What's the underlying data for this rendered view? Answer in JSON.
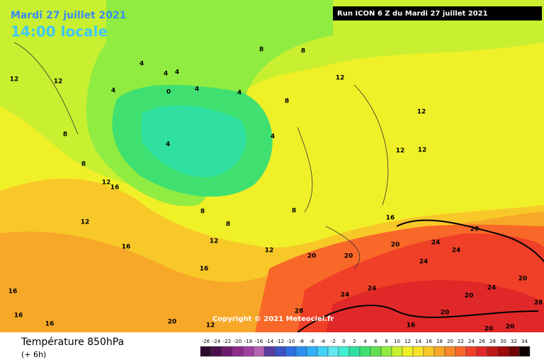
{
  "header": {
    "date": "Mardi 27 juillet 2021",
    "time": "14:00 locale",
    "run_info": "Run ICON 6 Z du Mardi 27 juillet 2021"
  },
  "copyright": "Copyright © 2021 Meteociel.fr",
  "legend": {
    "title": "Température 850hPa",
    "subtitle": "(+ 6h)",
    "ticks": [
      -26,
      -24,
      -22,
      -20,
      -18,
      -16,
      -14,
      -12,
      -10,
      -8,
      -6,
      -4,
      -2,
      0,
      2,
      4,
      6,
      8,
      10,
      12,
      14,
      16,
      18,
      20,
      22,
      24,
      26,
      28,
      30,
      32,
      34
    ],
    "colors": [
      "#2d0a2d",
      "#4b0f4b",
      "#6e1a6e",
      "#8c2a8c",
      "#a040a0",
      "#b464b4",
      "#5a3ca0",
      "#3c50c8",
      "#2e70e0",
      "#2c90f0",
      "#30b0f8",
      "#40d0f8",
      "#60e8f0",
      "#40f0d0",
      "#30e0a0",
      "#40e070",
      "#60e050",
      "#90ec40",
      "#c8f030",
      "#f0f028",
      "#f8e028",
      "#f8c828",
      "#f8a828",
      "#f88828",
      "#f86828",
      "#f04028",
      "#e02828",
      "#c01818",
      "#a00a0a",
      "#700404",
      "#100000"
    ]
  },
  "contour_labels": [
    12,
    12,
    4,
    4,
    4,
    4,
    0,
    4,
    4,
    8,
    8,
    8,
    12,
    12,
    12,
    12,
    4,
    4,
    8,
    8,
    12,
    16,
    12,
    12,
    8,
    8,
    8,
    12,
    16,
    16,
    16,
    16,
    16,
    20,
    20,
    20,
    24,
    24,
    20,
    24,
    24,
    24,
    20,
    24,
    20,
    20,
    20,
    20,
    28,
    28,
    16,
    16,
    20,
    12
  ]
}
